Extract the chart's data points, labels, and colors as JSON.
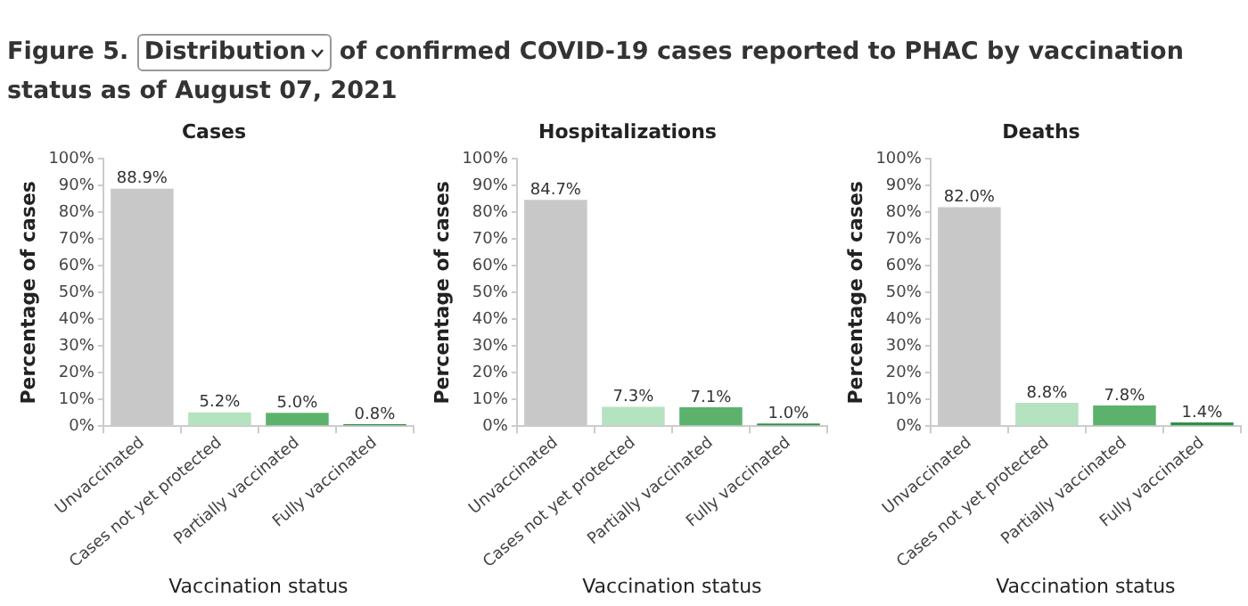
{
  "chart_data": [
    {
      "type": "bar",
      "title": "Cases",
      "xlabel": "Vaccination status",
      "ylabel": "Percentage of cases",
      "annotations": [
        "Figure 5.",
        "Distribution",
        "of confirmed COVID-19 cases reported to PHAC by vaccination status as of August 07, 2021"
      ],
      "categories": [
        "Unvaccinated",
        "Cases not yet protected",
        "Partially vaccinated",
        "Fully vaccinated"
      ],
      "values": [
        88.9,
        5.2,
        5.0,
        0.8
      ],
      "value_labels": [
        "88.9%",
        "5.2%",
        "5.0%",
        "0.8%"
      ],
      "colors": [
        "#c8c8c8",
        "#b5e2bf",
        "#5cb26c",
        "#2f8f48"
      ],
      "ylim": [
        0,
        100
      ],
      "yticks": [
        {
          "value": 0,
          "label": "0%"
        },
        {
          "value": 10,
          "label": "10%"
        },
        {
          "value": 20,
          "label": "20%"
        },
        {
          "value": 30,
          "label": "30%"
        },
        {
          "value": 40,
          "label": "40%"
        },
        {
          "value": 50,
          "label": "50%"
        },
        {
          "value": 60,
          "label": "60%"
        },
        {
          "value": 70,
          "label": "70%"
        },
        {
          "value": 80,
          "label": "80%"
        },
        {
          "value": 90,
          "label": "90%"
        },
        {
          "value": 100,
          "label": "100%"
        }
      ],
      "grid": false
    },
    {
      "type": "bar",
      "title": "Hospitalizations",
      "xlabel": "Vaccination status",
      "ylabel": "Percentage of cases",
      "categories": [
        "Unvaccinated",
        "Cases not yet protected",
        "Partially vaccinated",
        "Fully vaccinated"
      ],
      "values": [
        84.7,
        7.3,
        7.1,
        1.0
      ],
      "value_labels": [
        "84.7%",
        "7.3%",
        "7.1%",
        "1.0%"
      ],
      "colors": [
        "#c8c8c8",
        "#b5e2bf",
        "#5cb26c",
        "#2f8f48"
      ],
      "ylim": [
        0,
        100
      ],
      "yticks": [
        {
          "value": 0,
          "label": "0%"
        },
        {
          "value": 10,
          "label": "10%"
        },
        {
          "value": 20,
          "label": "20%"
        },
        {
          "value": 30,
          "label": "30%"
        },
        {
          "value": 40,
          "label": "40%"
        },
        {
          "value": 50,
          "label": "50%"
        },
        {
          "value": 60,
          "label": "60%"
        },
        {
          "value": 70,
          "label": "70%"
        },
        {
          "value": 80,
          "label": "80%"
        },
        {
          "value": 90,
          "label": "90%"
        },
        {
          "value": 100,
          "label": "100%"
        }
      ],
      "grid": false
    },
    {
      "type": "bar",
      "title": "Deaths",
      "xlabel": "Vaccination status",
      "ylabel": "Percentage of cases",
      "categories": [
        "Unvaccinated",
        "Cases not yet protected",
        "Partially vaccinated",
        "Fully vaccinated"
      ],
      "values": [
        82.0,
        8.8,
        7.8,
        1.4
      ],
      "value_labels": [
        "82.0%",
        "8.8%",
        "7.8%",
        "1.4%"
      ],
      "colors": [
        "#c8c8c8",
        "#b5e2bf",
        "#5cb26c",
        "#2f8f48"
      ],
      "ylim": [
        0,
        100
      ],
      "yticks": [
        {
          "value": 0,
          "label": "0%"
        },
        {
          "value": 10,
          "label": "10%"
        },
        {
          "value": 20,
          "label": "20%"
        },
        {
          "value": 30,
          "label": "30%"
        },
        {
          "value": 40,
          "label": "40%"
        },
        {
          "value": 50,
          "label": "50%"
        },
        {
          "value": 60,
          "label": "60%"
        },
        {
          "value": 70,
          "label": "70%"
        },
        {
          "value": 80,
          "label": "80%"
        },
        {
          "value": 90,
          "label": "90%"
        },
        {
          "value": 100,
          "label": "100%"
        }
      ],
      "grid": false
    }
  ]
}
